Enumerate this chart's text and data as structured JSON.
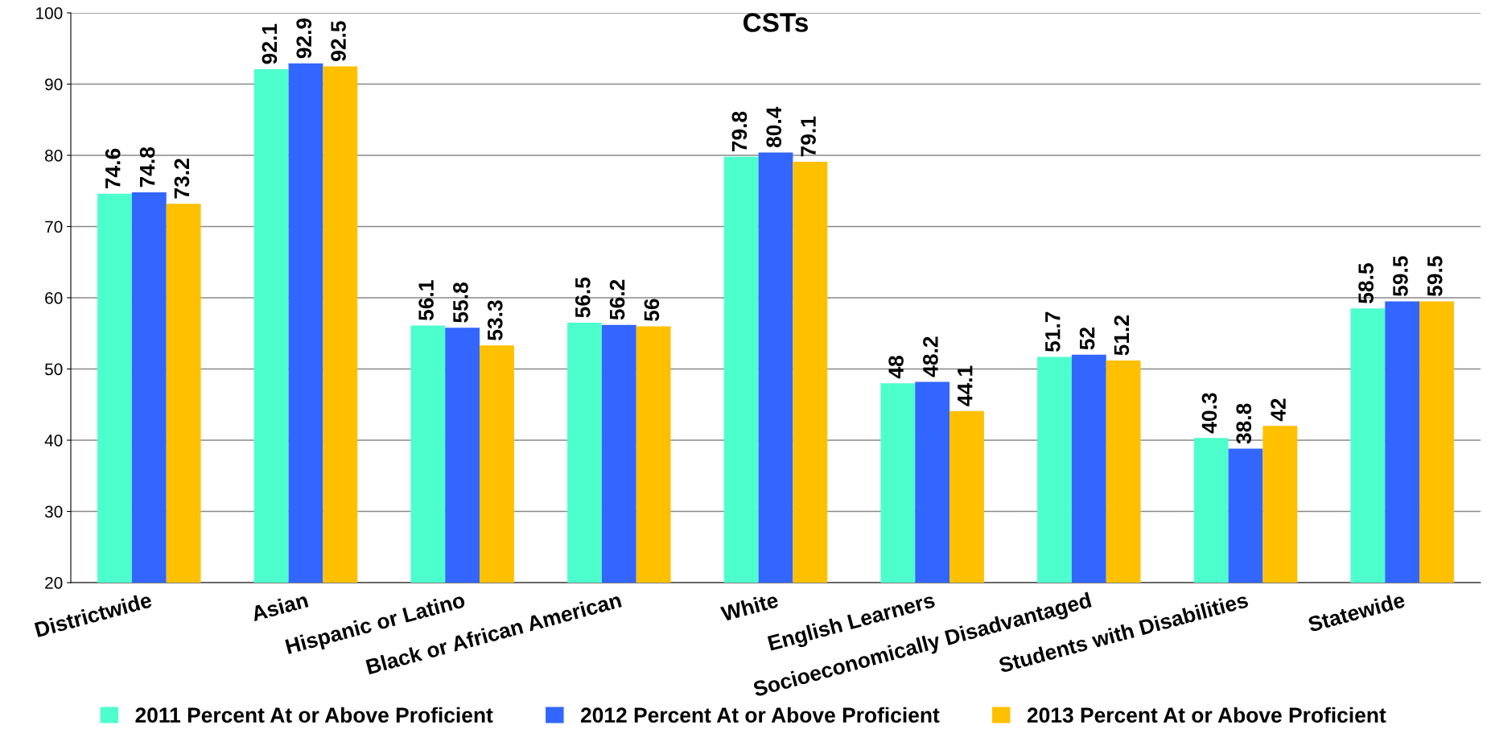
{
  "chart_data": {
    "type": "bar",
    "title": "CSTs",
    "categories": [
      "Districtwide",
      "Asian",
      "Hispanic or Latino",
      "Black or African American",
      "White",
      "English Learners",
      "Socioeconomically Disadvantaged",
      "Students with Disabilities",
      "Statewide"
    ],
    "series": [
      {
        "name": "2011 Percent At or Above Proficient",
        "color": "#4dffcc",
        "values": [
          74.6,
          92.1,
          56.1,
          56.5,
          79.8,
          48,
          51.7,
          40.3,
          58.5
        ]
      },
      {
        "name": "2012 Percent At or Above Proficient",
        "color": "#3366ff",
        "values": [
          74.8,
          92.9,
          55.8,
          56.2,
          80.4,
          48.2,
          52,
          38.8,
          59.5
        ]
      },
      {
        "name": "2013 Percent At or Above Proficient",
        "color": "#ffc000",
        "values": [
          73.2,
          92.5,
          53.3,
          56,
          79.1,
          44.1,
          51.2,
          42,
          59.5
        ]
      }
    ],
    "ylim": [
      20,
      100
    ],
    "yticks": [
      20,
      30,
      40,
      50,
      60,
      70,
      80,
      90,
      100
    ],
    "grid": "y",
    "legend": "bottom",
    "data_labels": true
  }
}
